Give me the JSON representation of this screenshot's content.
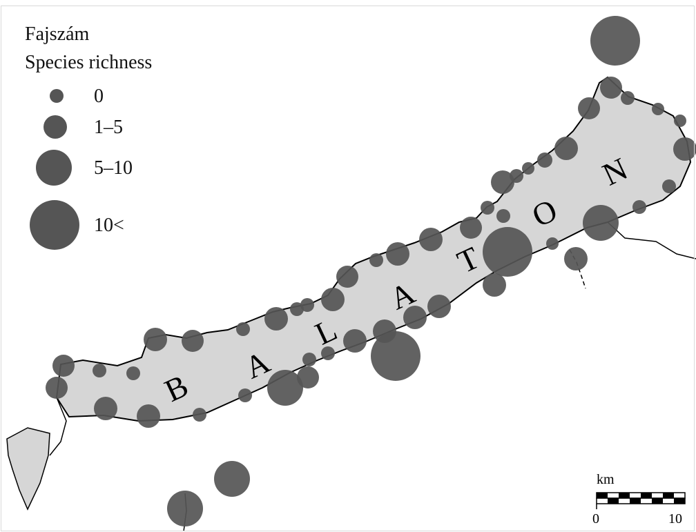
{
  "legend": {
    "title_hu": "Fajszám",
    "title_en": "Species richness",
    "classes": [
      {
        "label": "0"
      },
      {
        "label": "1–5"
      },
      {
        "label": "5–10"
      },
      {
        "label": "10<"
      }
    ]
  },
  "lake_label": [
    "B",
    "A",
    "L",
    "A",
    "T",
    "O",
    "N"
  ],
  "scale_bar": {
    "unit": "km",
    "min": "0",
    "max": "10"
  },
  "colors": {
    "circle": "#555555",
    "water": "#d6d6d6",
    "outline": "#000000"
  }
}
